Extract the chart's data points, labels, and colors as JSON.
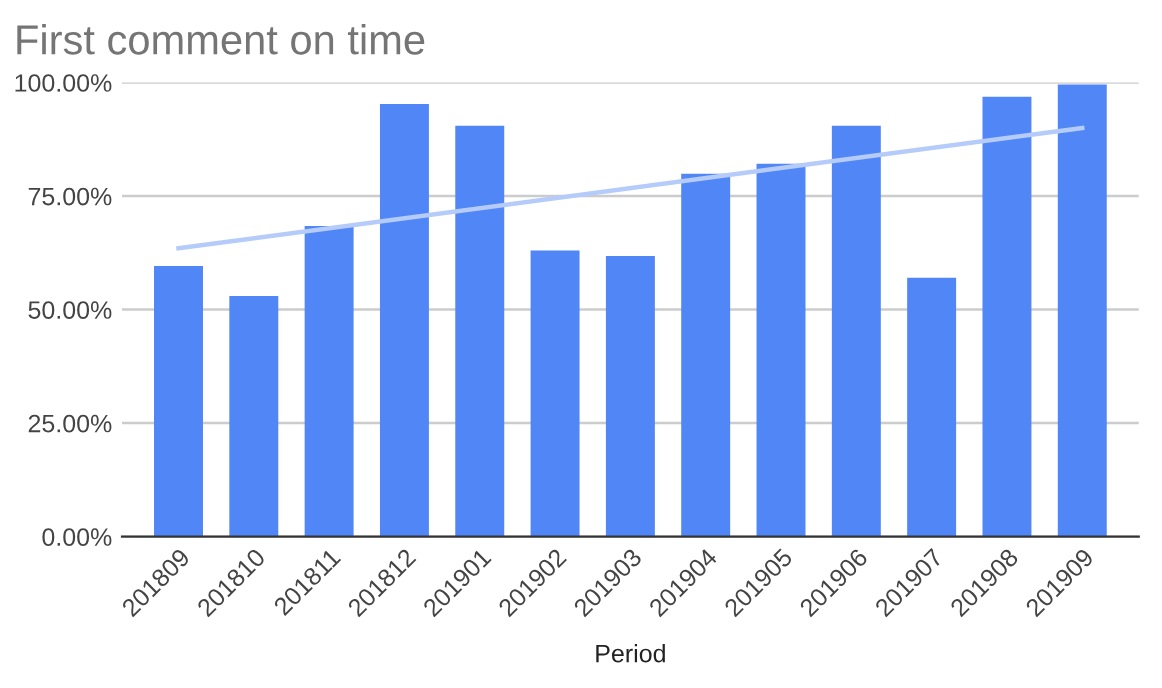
{
  "chart_data": {
    "type": "bar",
    "title": "First comment on time",
    "xlabel": "Period",
    "categories": [
      "201809",
      "201810",
      "201811",
      "201812",
      "201901",
      "201902",
      "201903",
      "201904",
      "201905",
      "201906",
      "201907",
      "201908",
      "201909"
    ],
    "series": [
      {
        "color": "#5086f5",
        "values": [
          59.6,
          53.0,
          68.4,
          95.3,
          90.5,
          63.0,
          61.8,
          79.9,
          82.1,
          90.5,
          57.0,
          96.9,
          99.6
        ]
      },
      {
        "type": "line",
        "color": "#b5cbfa",
        "x": [
          "201809",
          "201909"
        ],
        "values": [
          63.5,
          90.0
        ]
      }
    ],
    "ylim": [
      0,
      100
    ],
    "yticks": [
      {
        "value": 0,
        "label": "0.00%"
      },
      {
        "value": 25,
        "label": "25.00%"
      },
      {
        "value": 50,
        "label": "50.00%"
      },
      {
        "value": 75,
        "label": "75.00%"
      },
      {
        "value": 100,
        "label": "100.00%"
      }
    ],
    "grid": "y",
    "legend": false
  }
}
